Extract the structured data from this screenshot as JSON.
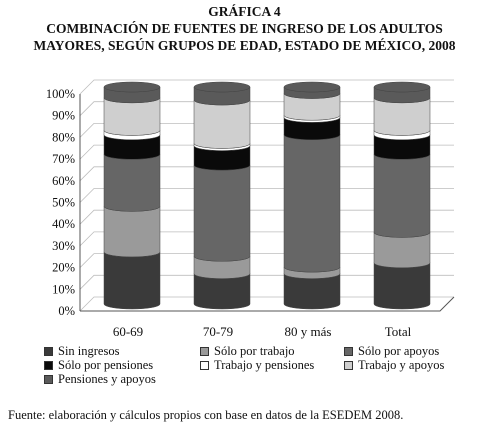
{
  "header": {
    "label": "GRÁFICA 4",
    "title_line1": "COMBINACIÓN DE FUENTES DE INGRESO DE LOS ADULTOS",
    "title_line2": "MAYORES, SEGÚN GRUPOS DE EDAD, ESTADO DE MÉXICO, 2008"
  },
  "source": "Fuente: elaboración y cálculos propios con base en datos de la ESEDEM 2008.",
  "chart_data": {
    "type": "bar",
    "stacked": true,
    "style": "3d-cylinder",
    "categories": [
      "60-69",
      "70-79",
      "80 y más",
      "Total"
    ],
    "ylim": [
      0,
      100
    ],
    "yticks": [
      "0%",
      "10%",
      "20%",
      "30%",
      "40%",
      "50%",
      "60%",
      "70%",
      "80%",
      "90%",
      "100%"
    ],
    "grid": true,
    "legend_position": "bottom",
    "series": [
      {
        "name": "Sin ingresos",
        "color": "#3a3a3a",
        "values": [
          24,
          14,
          14,
          19
        ]
      },
      {
        "name": "Sólo por trabajo",
        "color": "#9a9a9a",
        "values": [
          21,
          8,
          3,
          14
        ]
      },
      {
        "name": "Sólo por apoyos",
        "color": "#666666",
        "values": [
          24,
          42,
          61,
          36
        ]
      },
      {
        "name": "Sólo por pensiones",
        "color": "#0a0a0a",
        "values": [
          9,
          9,
          8,
          9
        ]
      },
      {
        "name": "Trabajo y pensiones",
        "color": "#ffffff",
        "values": [
          2,
          1,
          1,
          2
        ]
      },
      {
        "name": "Trabajo y apoyos",
        "color": "#cfcfcf",
        "values": [
          15,
          20,
          10,
          15
        ]
      },
      {
        "name": "Pensiones y apoyos",
        "color": "#5a5a5a",
        "values": [
          5,
          6,
          3,
          5
        ]
      }
    ]
  }
}
